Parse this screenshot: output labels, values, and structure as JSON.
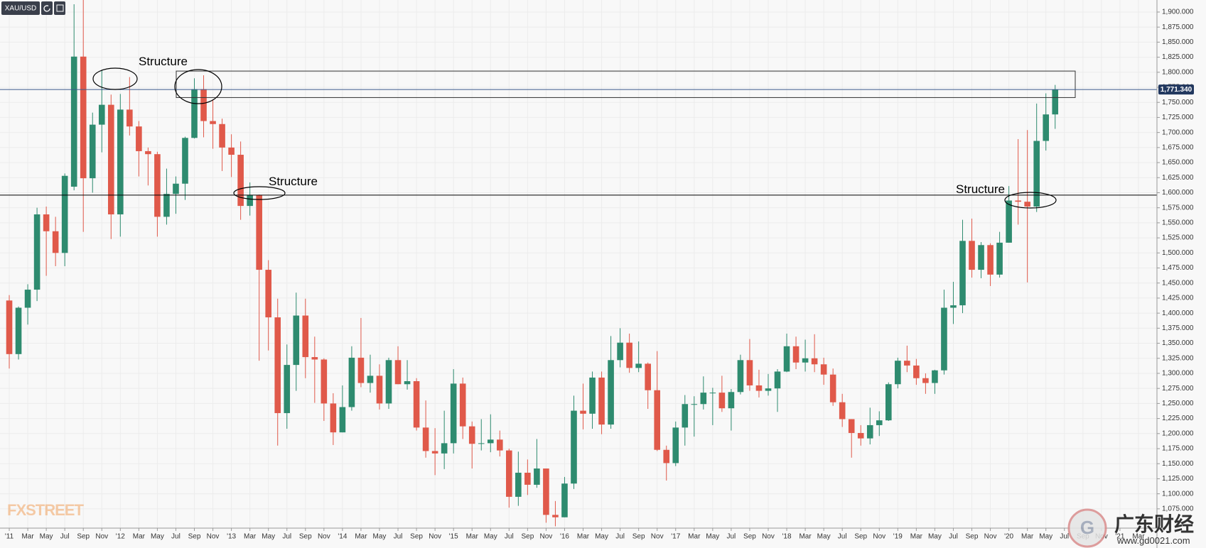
{
  "chart_data": {
    "type": "candlestick",
    "symbol": "XAU/USD",
    "logo": "FXSTREET",
    "watermark": {
      "title": "广东财经",
      "url": "www.gd0021.com"
    },
    "annotations": [
      "Structure",
      "Structure",
      "Structure"
    ],
    "up_color": "#2e8b6f",
    "down_color": "#e0594a",
    "x": [
      "2011-01",
      "2011-02",
      "2011-03",
      "2011-04",
      "2011-05",
      "2011-06",
      "2011-07",
      "2011-08",
      "2011-09",
      "2011-10",
      "2011-11",
      "2011-12",
      "2012-01",
      "2012-02",
      "2012-03",
      "2012-04",
      "2012-05",
      "2012-06",
      "2012-07",
      "2012-08",
      "2012-09",
      "2012-10",
      "2012-11",
      "2012-12",
      "2013-01",
      "2013-02",
      "2013-03",
      "2013-04",
      "2013-05",
      "2013-06",
      "2013-07",
      "2013-08",
      "2013-09",
      "2013-10",
      "2013-11",
      "2013-12",
      "2014-01",
      "2014-02",
      "2014-03",
      "2014-04",
      "2014-05",
      "2014-06",
      "2014-07",
      "2014-08",
      "2014-09",
      "2014-10",
      "2014-11",
      "2014-12",
      "2015-01",
      "2015-02",
      "2015-03",
      "2015-04",
      "2015-05",
      "2015-06",
      "2015-07",
      "2015-08",
      "2015-09",
      "2015-10",
      "2015-11",
      "2015-12",
      "2016-01",
      "2016-02",
      "2016-03",
      "2016-04",
      "2016-05",
      "2016-06",
      "2016-07",
      "2016-08",
      "2016-09",
      "2016-10",
      "2016-11",
      "2016-12",
      "2017-01",
      "2017-02",
      "2017-03",
      "2017-04",
      "2017-05",
      "2017-06",
      "2017-07",
      "2017-08",
      "2017-09",
      "2017-10",
      "2017-11",
      "2017-12",
      "2018-01",
      "2018-02",
      "2018-03",
      "2018-04",
      "2018-05",
      "2018-06",
      "2018-07",
      "2018-08",
      "2018-09",
      "2018-10",
      "2018-11",
      "2018-12",
      "2019-01",
      "2019-02",
      "2019-03",
      "2019-04",
      "2019-05",
      "2019-06",
      "2019-07",
      "2019-08",
      "2019-09",
      "2019-10",
      "2019-11",
      "2019-12",
      "2020-01",
      "2020-02",
      "2020-03",
      "2020-04",
      "2020-05",
      "2020-06"
    ],
    "open": [
      1421,
      1332,
      1409,
      1439,
      1564,
      1536,
      1500,
      1610,
      1826,
      1624,
      1713,
      1746,
      1564,
      1738,
      1710,
      1669,
      1664,
      1560,
      1598,
      1615,
      1691,
      1772,
      1719,
      1714,
      1675,
      1663,
      1578,
      1596,
      1472,
      1393,
      1234,
      1314,
      1396,
      1327,
      1323,
      1250,
      1202,
      1244,
      1326,
      1284,
      1296,
      1250,
      1322,
      1282,
      1287,
      1210,
      1171,
      1167,
      1184,
      1283,
      1212,
      1183,
      1184,
      1190,
      1172,
      1095,
      1135,
      1115,
      1142,
      1065,
      1061,
      1117,
      1238,
      1233,
      1293,
      1215,
      1322,
      1351,
      1309,
      1316,
      1272,
      1173,
      1151,
      1210,
      1249,
      1249,
      1268,
      1268,
      1242,
      1269,
      1322,
      1280,
      1271,
      1275,
      1303,
      1345,
      1318,
      1325,
      1315,
      1298,
      1252,
      1224,
      1201,
      1192,
      1214,
      1222,
      1282,
      1321,
      1313,
      1292,
      1284,
      1305,
      1409,
      1413,
      1520,
      1472,
      1513,
      1464,
      1517,
      1587,
      1585,
      1577,
      1686,
      1730
    ],
    "high": [
      1430,
      1411,
      1448,
      1575,
      1577,
      1560,
      1632,
      1913,
      1921,
      1733,
      1804,
      1763,
      1764,
      1792,
      1719,
      1675,
      1668,
      1640,
      1627,
      1693,
      1790,
      1795,
      1754,
      1723,
      1697,
      1685,
      1617,
      1597,
      1488,
      1424,
      1348,
      1434,
      1424,
      1361,
      1325,
      1267,
      1280,
      1345,
      1392,
      1331,
      1315,
      1326,
      1345,
      1322,
      1292,
      1255,
      1209,
      1238,
      1307,
      1293,
      1220,
      1224,
      1232,
      1205,
      1175,
      1170,
      1157,
      1191,
      1142,
      1088,
      1128,
      1263,
      1283,
      1303,
      1303,
      1362,
      1375,
      1366,
      1353,
      1318,
      1337,
      1180,
      1220,
      1264,
      1262,
      1295,
      1276,
      1296,
      1274,
      1331,
      1357,
      1306,
      1299,
      1307,
      1366,
      1361,
      1356,
      1365,
      1326,
      1308,
      1266,
      1224,
      1214,
      1243,
      1237,
      1285,
      1326,
      1346,
      1324,
      1300,
      1306,
      1439,
      1452,
      1555,
      1557,
      1518,
      1516,
      1535,
      1611,
      1689,
      1704,
      1748,
      1765,
      1779
    ],
    "low": [
      1308,
      1323,
      1381,
      1420,
      1462,
      1478,
      1478,
      1604,
      1535,
      1600,
      1667,
      1523,
      1527,
      1695,
      1627,
      1612,
      1527,
      1547,
      1565,
      1588,
      1690,
      1692,
      1673,
      1636,
      1626,
      1555,
      1562,
      1321,
      1338,
      1180,
      1208,
      1271,
      1292,
      1251,
      1221,
      1181,
      1202,
      1238,
      1277,
      1268,
      1240,
      1241,
      1282,
      1273,
      1205,
      1160,
      1131,
      1141,
      1167,
      1191,
      1142,
      1172,
      1169,
      1162,
      1077,
      1080,
      1098,
      1110,
      1052,
      1046,
      1061,
      1108,
      1207,
      1208,
      1199,
      1208,
      1310,
      1301,
      1302,
      1241,
      1171,
      1122,
      1146,
      1180,
      1195,
      1240,
      1214,
      1236,
      1205,
      1265,
      1271,
      1260,
      1263,
      1236,
      1302,
      1307,
      1303,
      1302,
      1281,
      1246,
      1211,
      1160,
      1180,
      1182,
      1196,
      1221,
      1275,
      1302,
      1281,
      1266,
      1266,
      1298,
      1382,
      1400,
      1459,
      1458,
      1445,
      1459,
      1517,
      1547,
      1451,
      1568,
      1670,
      1706
    ],
    "close": [
      1332,
      1409,
      1439,
      1564,
      1536,
      1500,
      1628,
      1826,
      1624,
      1713,
      1746,
      1564,
      1738,
      1710,
      1669,
      1664,
      1560,
      1598,
      1615,
      1691,
      1772,
      1719,
      1714,
      1675,
      1663,
      1578,
      1596,
      1472,
      1393,
      1234,
      1314,
      1396,
      1327,
      1323,
      1250,
      1202,
      1244,
      1326,
      1284,
      1296,
      1250,
      1322,
      1282,
      1287,
      1210,
      1171,
      1167,
      1184,
      1283,
      1212,
      1183,
      1184,
      1190,
      1172,
      1095,
      1135,
      1115,
      1142,
      1065,
      1061,
      1117,
      1238,
      1233,
      1293,
      1215,
      1322,
      1351,
      1309,
      1316,
      1272,
      1173,
      1151,
      1210,
      1249,
      1249,
      1268,
      1268,
      1242,
      1269,
      1322,
      1280,
      1271,
      1275,
      1303,
      1345,
      1318,
      1325,
      1315,
      1298,
      1252,
      1224,
      1201,
      1192,
      1214,
      1222,
      1282,
      1321,
      1313,
      1292,
      1284,
      1305,
      1409,
      1413,
      1520,
      1472,
      1513,
      1464,
      1517,
      1587,
      1585,
      1577,
      1686,
      1730,
      1771.34
    ],
    "price_line": {
      "value": 1771.34,
      "label": "1,771.340"
    },
    "support_level": 1596,
    "resistance_zone": [
      1758,
      1802
    ],
    "xlim": [
      "2010-12",
      "2021-05"
    ],
    "xticks": [
      {
        "value": "2011-01",
        "label": "'11"
      },
      {
        "value": "2011-03",
        "label": "Mar"
      },
      {
        "value": "2011-05",
        "label": "May"
      },
      {
        "value": "2011-07",
        "label": "Jul"
      },
      {
        "value": "2011-09",
        "label": "Sep"
      },
      {
        "value": "2011-11",
        "label": "Nov"
      },
      {
        "value": "2012-01",
        "label": "'12"
      },
      {
        "value": "2012-03",
        "label": "Mar"
      },
      {
        "value": "2012-05",
        "label": "May"
      },
      {
        "value": "2012-07",
        "label": "Jul"
      },
      {
        "value": "2012-09",
        "label": "Sep"
      },
      {
        "value": "2012-11",
        "label": "Nov"
      },
      {
        "value": "2013-01",
        "label": "'13"
      },
      {
        "value": "2013-03",
        "label": "Mar"
      },
      {
        "value": "2013-05",
        "label": "May"
      },
      {
        "value": "2013-07",
        "label": "Jul"
      },
      {
        "value": "2013-09",
        "label": "Sep"
      },
      {
        "value": "2013-11",
        "label": "Nov"
      },
      {
        "value": "2014-01",
        "label": "'14"
      },
      {
        "value": "2014-03",
        "label": "Mar"
      },
      {
        "value": "2014-05",
        "label": "May"
      },
      {
        "value": "2014-07",
        "label": "Jul"
      },
      {
        "value": "2014-09",
        "label": "Sep"
      },
      {
        "value": "2014-11",
        "label": "Nov"
      },
      {
        "value": "2015-01",
        "label": "'15"
      },
      {
        "value": "2015-03",
        "label": "Mar"
      },
      {
        "value": "2015-05",
        "label": "May"
      },
      {
        "value": "2015-07",
        "label": "Jul"
      },
      {
        "value": "2015-09",
        "label": "Sep"
      },
      {
        "value": "2015-11",
        "label": "Nov"
      },
      {
        "value": "2016-01",
        "label": "'16"
      },
      {
        "value": "2016-03",
        "label": "Mar"
      },
      {
        "value": "2016-05",
        "label": "May"
      },
      {
        "value": "2016-07",
        "label": "Jul"
      },
      {
        "value": "2016-09",
        "label": "Sep"
      },
      {
        "value": "2016-11",
        "label": "Nov"
      },
      {
        "value": "2017-01",
        "label": "'17"
      },
      {
        "value": "2017-03",
        "label": "Mar"
      },
      {
        "value": "2017-05",
        "label": "May"
      },
      {
        "value": "2017-07",
        "label": "Jul"
      },
      {
        "value": "2017-09",
        "label": "Sep"
      },
      {
        "value": "2017-11",
        "label": "Nov"
      },
      {
        "value": "2018-01",
        "label": "'18"
      },
      {
        "value": "2018-03",
        "label": "Mar"
      },
      {
        "value": "2018-05",
        "label": "May"
      },
      {
        "value": "2018-07",
        "label": "Jul"
      },
      {
        "value": "2018-09",
        "label": "Sep"
      },
      {
        "value": "2018-11",
        "label": "Nov"
      },
      {
        "value": "2019-01",
        "label": "'19"
      },
      {
        "value": "2019-03",
        "label": "Mar"
      },
      {
        "value": "2019-05",
        "label": "May"
      },
      {
        "value": "2019-07",
        "label": "Jul"
      },
      {
        "value": "2019-09",
        "label": "Sep"
      },
      {
        "value": "2019-11",
        "label": "Nov"
      },
      {
        "value": "2020-01",
        "label": "'20"
      },
      {
        "value": "2020-03",
        "label": "Mar"
      },
      {
        "value": "2020-05",
        "label": "May"
      },
      {
        "value": "2020-07",
        "label": "Jul"
      },
      {
        "value": "2020-09",
        "label": "Sep"
      },
      {
        "value": "2020-11",
        "label": "Nov"
      },
      {
        "value": "2021-01",
        "label": "'21"
      },
      {
        "value": "2021-03",
        "label": "Mar"
      }
    ],
    "ylim": [
      1043,
      1920
    ],
    "yticks": [
      {
        "value": 1075,
        "label": "1,075.000"
      },
      {
        "value": 1100,
        "label": "1,100.000"
      },
      {
        "value": 1125,
        "label": "1,125.000"
      },
      {
        "value": 1150,
        "label": "1,150.000"
      },
      {
        "value": 1175,
        "label": "1,175.000"
      },
      {
        "value": 1200,
        "label": "1,200.000"
      },
      {
        "value": 1225,
        "label": "1,225.000"
      },
      {
        "value": 1250,
        "label": "1,250.000"
      },
      {
        "value": 1275,
        "label": "1,275.000"
      },
      {
        "value": 1300,
        "label": "1,300.000"
      },
      {
        "value": 1325,
        "label": "1,325.000"
      },
      {
        "value": 1350,
        "label": "1,350.000"
      },
      {
        "value": 1375,
        "label": "1,375.000"
      },
      {
        "value": 1400,
        "label": "1,400.000"
      },
      {
        "value": 1425,
        "label": "1,425.000"
      },
      {
        "value": 1450,
        "label": "1,450.000"
      },
      {
        "value": 1475,
        "label": "1,475.000"
      },
      {
        "value": 1500,
        "label": "1,500.000"
      },
      {
        "value": 1525,
        "label": "1,525.000"
      },
      {
        "value": 1550,
        "label": "1,550.000"
      },
      {
        "value": 1575,
        "label": "1,575.000"
      },
      {
        "value": 1600,
        "label": "1,600.000"
      },
      {
        "value": 1625,
        "label": "1,625.000"
      },
      {
        "value": 1650,
        "label": "1,650.000"
      },
      {
        "value": 1675,
        "label": "1,675.000"
      },
      {
        "value": 1700,
        "label": "1,700.000"
      },
      {
        "value": 1725,
        "label": "1,725.000"
      },
      {
        "value": 1750,
        "label": "1,750.000"
      },
      {
        "value": 1775,
        "label": "1,775.000"
      },
      {
        "value": 1800,
        "label": "1,800.000"
      },
      {
        "value": 1825,
        "label": "1,825.000"
      },
      {
        "value": 1850,
        "label": "1,850.000"
      },
      {
        "value": 1875,
        "label": "1,875.000"
      },
      {
        "value": 1900,
        "label": "1,900.000"
      }
    ],
    "grid": true
  }
}
